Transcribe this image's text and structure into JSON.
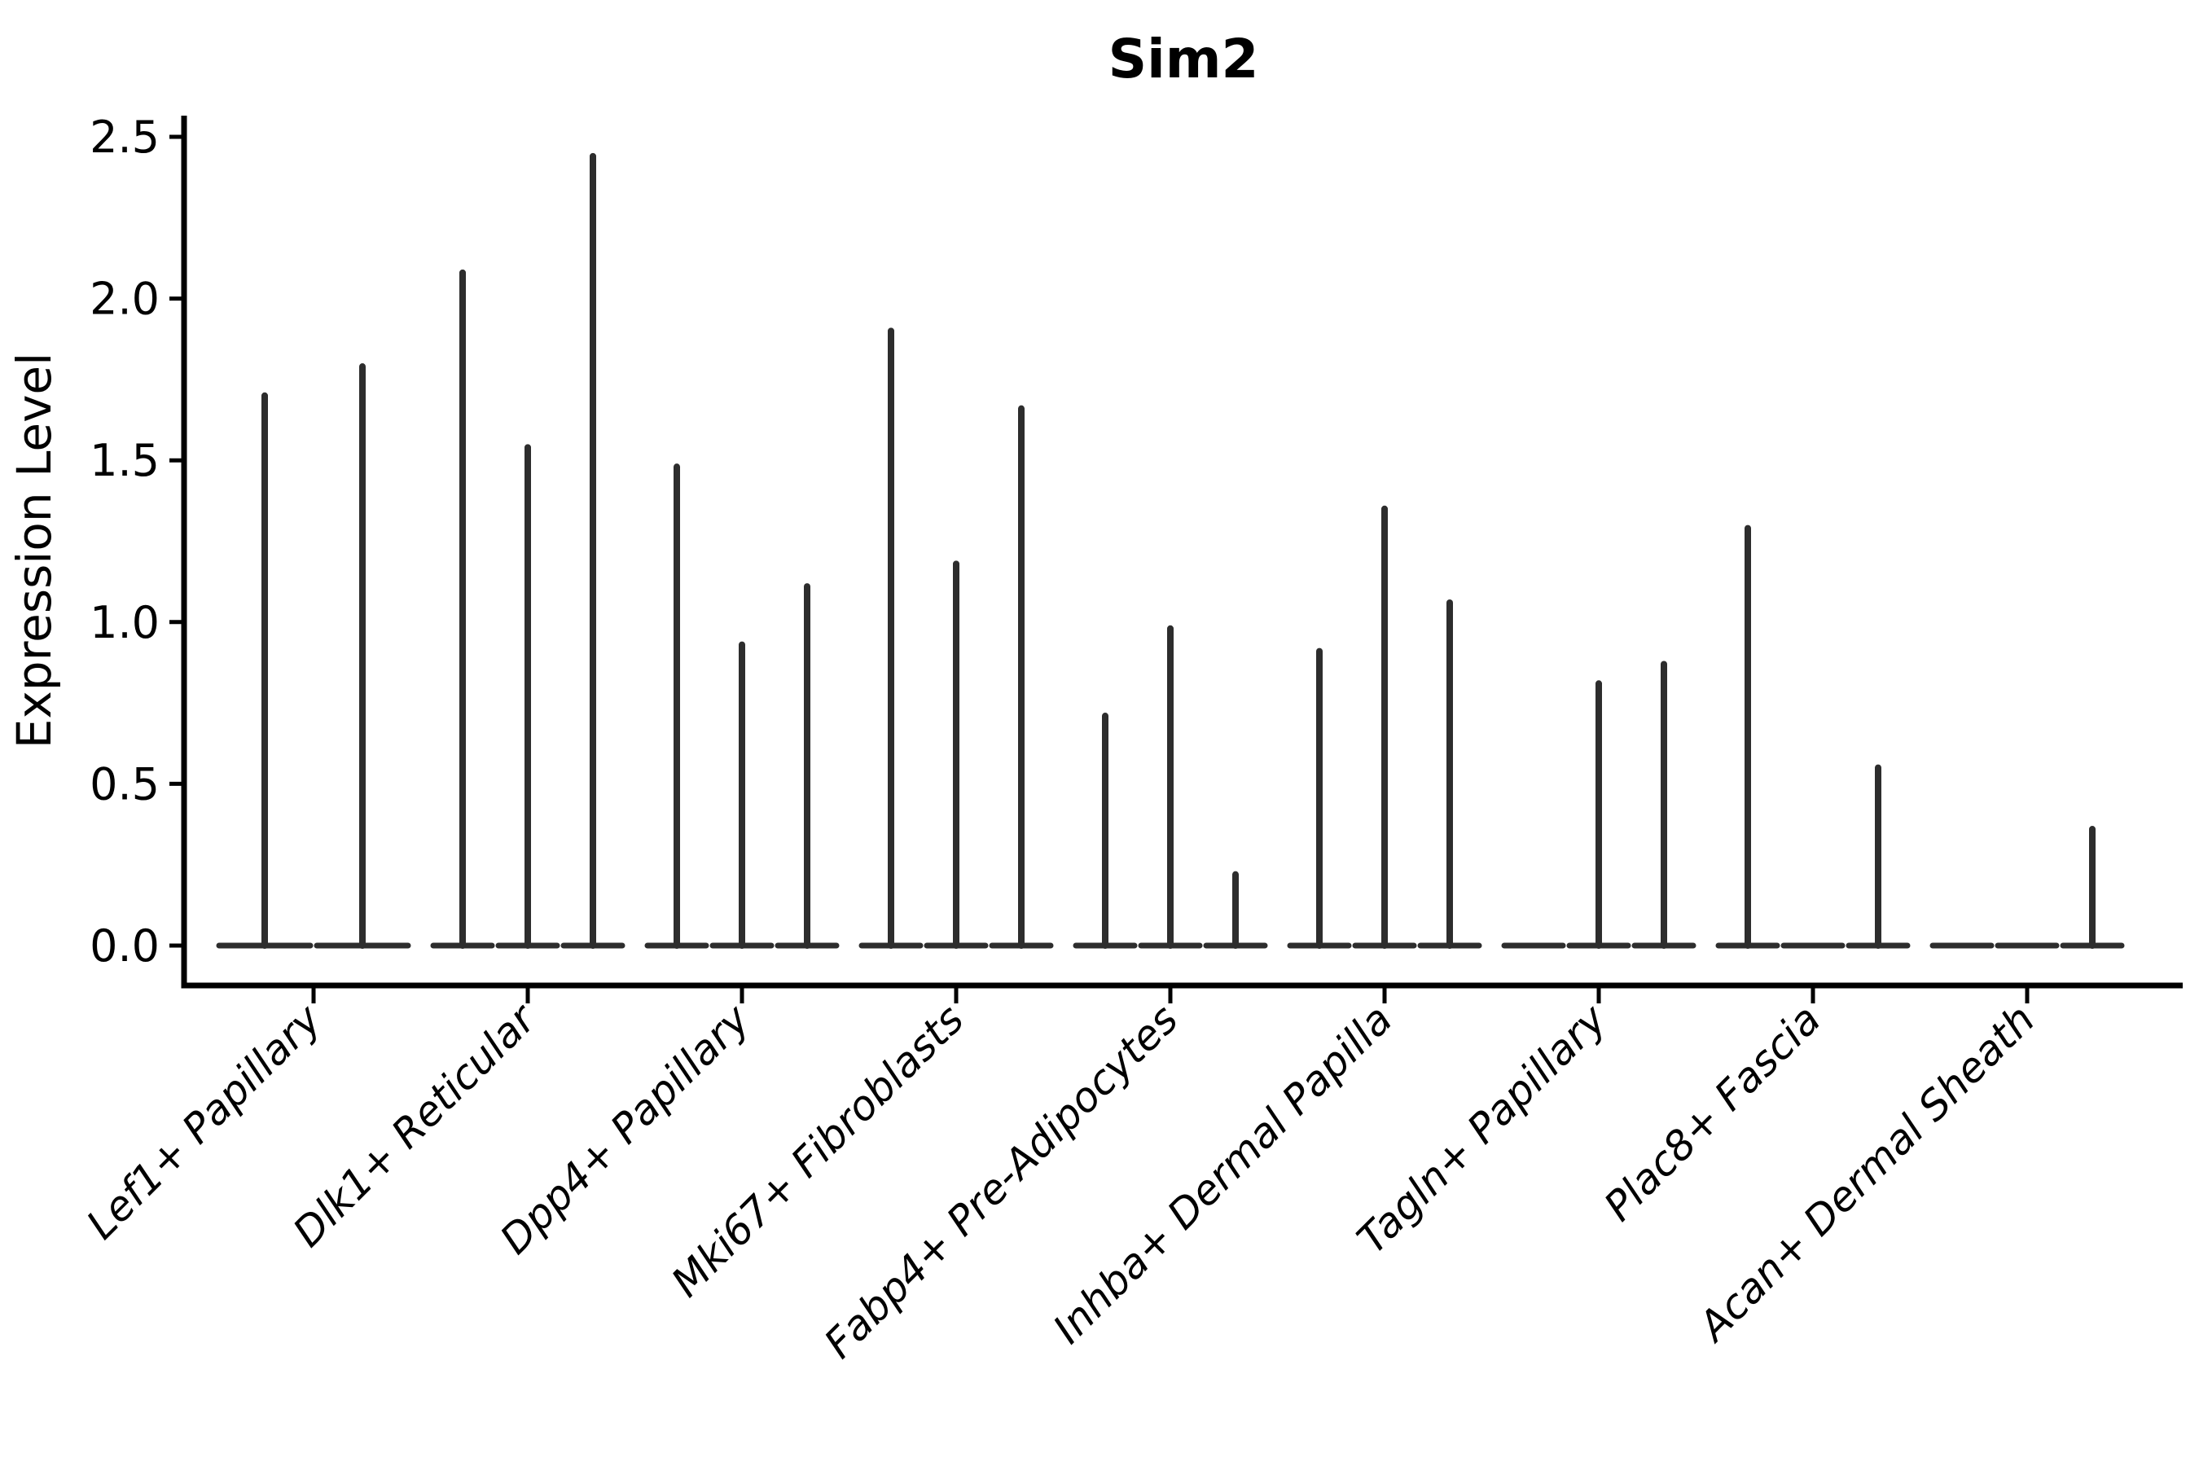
{
  "title": "Sim2",
  "ylabel": "Expression Level",
  "colors": {
    "violin": "#2d2d2d",
    "axis": "#000000",
    "background": "#ffffff"
  },
  "chart_data": {
    "type": "violin",
    "title": "Sim2",
    "xlabel": "",
    "ylabel": "Expression Level",
    "ylim": [
      0,
      2.5
    ],
    "yticks": [
      0.0,
      0.5,
      1.0,
      1.5,
      2.0,
      2.5
    ],
    "ytick_labels": [
      "0.0",
      "0.5",
      "1.0",
      "1.5",
      "2.0",
      "2.5"
    ],
    "grid": false,
    "legend": "none",
    "categories": [
      "Lef1+ Papillary",
      "Dlk1+ Reticular",
      "Dpp4+ Papillary",
      "Mki67+ Fibroblasts",
      "Fabp4+ Pre-Adipocytes",
      "Inhba+ Dermal Papilla",
      "Tagln+ Papillary",
      "Plac8+ Fascia",
      "Acan+ Dermal Sheath"
    ],
    "groups": [
      {
        "category": "Lef1+ Papillary",
        "violin_max_values": [
          1.71,
          1.8
        ]
      },
      {
        "category": "Dlk1+ Reticular",
        "violin_max_values": [
          2.09,
          1.55,
          2.45
        ]
      },
      {
        "category": "Dpp4+ Papillary",
        "violin_max_values": [
          1.49,
          0.94,
          1.12
        ]
      },
      {
        "category": "Mki67+ Fibroblasts",
        "violin_max_values": [
          1.91,
          1.19,
          1.67
        ]
      },
      {
        "category": "Fabp4+ Pre-Adipocytes",
        "violin_max_values": [
          0.72,
          0.99,
          0.23
        ]
      },
      {
        "category": "Inhba+ Dermal Papilla",
        "violin_max_values": [
          0.92,
          1.36,
          1.07
        ]
      },
      {
        "category": "Tagln+ Papillary",
        "violin_max_values": [
          0.0,
          0.82,
          0.88
        ]
      },
      {
        "category": "Plac8+ Fascia",
        "violin_max_values": [
          1.3,
          0.0,
          0.56
        ]
      },
      {
        "category": "Acan+ Dermal Sheath",
        "violin_max_values": [
          0.0,
          0.0,
          0.37
        ]
      }
    ],
    "description": "Violin plot; each category shows flat zero-density bodies with thin spikes reaching the listed maximum expression value."
  }
}
